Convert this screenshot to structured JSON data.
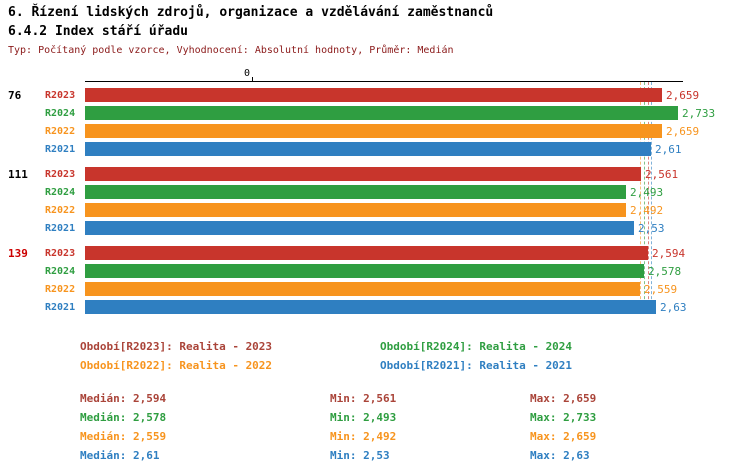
{
  "header": {
    "title1": "6. Řízení lidských zdrojů, organizace a vzdělávání zaměstnanců",
    "title2": "6.4.2 Index stáří úřadu",
    "meta": "Typ: Počítaný podle vzorce, Vyhodnocení: Absolutní hodnoty, Průměr: Medián"
  },
  "colors": {
    "R2023": {
      "bar": "#c8352c",
      "text": "#aa4439"
    },
    "R2024": {
      "bar": "#2f9e41",
      "text": "#2f9e41"
    },
    "R2022": {
      "bar": "#f7941e",
      "text": "#f7941e"
    },
    "R2021": {
      "bar": "#2f7fc1",
      "text": "#2f7fc1"
    },
    "meta_text": "#8b1a1a",
    "group_highlight": "#cc0000",
    "axis": "#000000"
  },
  "chart_data": {
    "type": "bar",
    "orientation": "horizontal",
    "title": "6.4.2 Index stáří úřadu",
    "x_axis": {
      "zero_label": "0",
      "min": 0,
      "max": 2.8,
      "grid": false
    },
    "legend_position": "below",
    "series_order": [
      "R2023",
      "R2024",
      "R2022",
      "R2021"
    ],
    "medians": {
      "R2023": 2.594,
      "R2024": 2.578,
      "R2022": 2.559,
      "R2021": 2.61
    },
    "groups": [
      {
        "label": "76",
        "highlight": false,
        "bars": [
          {
            "series": "R2023",
            "value": 2.659,
            "display": "2,659"
          },
          {
            "series": "R2024",
            "value": 2.733,
            "display": "2,733"
          },
          {
            "series": "R2022",
            "value": 2.659,
            "display": "2,659"
          },
          {
            "series": "R2021",
            "value": 2.61,
            "display": "2,61"
          }
        ]
      },
      {
        "label": "111",
        "highlight": false,
        "bars": [
          {
            "series": "R2023",
            "value": 2.561,
            "display": "2,561"
          },
          {
            "series": "R2024",
            "value": 2.493,
            "display": "2,493"
          },
          {
            "series": "R2022",
            "value": 2.492,
            "display": "2,492"
          },
          {
            "series": "R2021",
            "value": 2.53,
            "display": "2,53"
          }
        ]
      },
      {
        "label": "139",
        "highlight": true,
        "bars": [
          {
            "series": "R2023",
            "value": 2.594,
            "display": "2,594"
          },
          {
            "series": "R2024",
            "value": 2.578,
            "display": "2,578"
          },
          {
            "series": "R2022",
            "value": 2.559,
            "display": "2,559"
          },
          {
            "series": "R2021",
            "value": 2.63,
            "display": "2,63"
          }
        ]
      }
    ]
  },
  "legend": {
    "items": [
      {
        "series": "R2023",
        "text": "Období[R2023]: Realita - 2023"
      },
      {
        "series": "R2024",
        "text": "Období[R2024]: Realita - 2024"
      },
      {
        "series": "R2022",
        "text": "Období[R2022]: Realita - 2022"
      },
      {
        "series": "R2021",
        "text": "Období[R2021]: Realita - 2021"
      }
    ]
  },
  "stats": {
    "rows": [
      {
        "series": "R2023",
        "median": "Medián: 2,594",
        "min": "Min: 2,561",
        "max": "Max: 2,659"
      },
      {
        "series": "R2024",
        "median": "Medián: 2,578",
        "min": "Min: 2,493",
        "max": "Max: 2,733"
      },
      {
        "series": "R2022",
        "median": "Medián: 2,559",
        "min": "Min: 2,492",
        "max": "Max: 2,659"
      },
      {
        "series": "R2021",
        "median": "Medián: 2,61",
        "min": "Min: 2,53",
        "max": "Max: 2,63"
      }
    ]
  }
}
